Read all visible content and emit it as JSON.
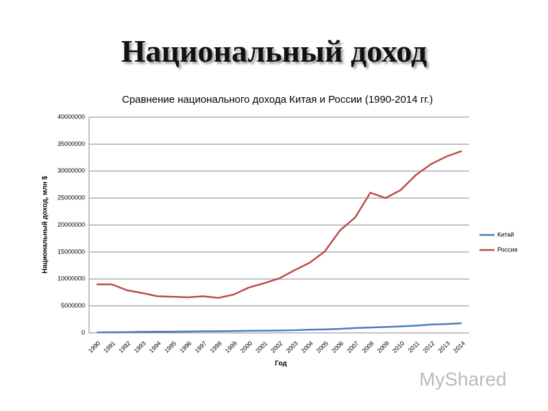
{
  "slide_title": "Национальный доход",
  "watermark": "MyShared",
  "chart_data": {
    "type": "line",
    "title": "Сравнение национального дохода Китая и России (1990-2014 гг.)",
    "x_label": "Год",
    "y_label": "Национальный доход, млн $",
    "categories": [
      "1990",
      "1991",
      "1992",
      "1993",
      "1994",
      "1995",
      "1996",
      "1997",
      "1998",
      "1999",
      "2000",
      "2001",
      "2002",
      "2003",
      "2004",
      "2005",
      "2006",
      "2007",
      "2008",
      "2009",
      "2010",
      "2011",
      "2012",
      "2013",
      "2014"
    ],
    "series": [
      {
        "name": "Китай",
        "color": "#4a7ebb",
        "values": [
          100000,
          120000,
          150000,
          200000,
          220000,
          230000,
          250000,
          300000,
          320000,
          350000,
          400000,
          420000,
          450000,
          500000,
          600000,
          650000,
          750000,
          900000,
          1000000,
          1100000,
          1200000,
          1350000,
          1550000,
          1650000,
          1800000
        ]
      },
      {
        "name": "Россия",
        "color": "#be4b48",
        "values": [
          9000000,
          9000000,
          7900000,
          7400000,
          6800000,
          6700000,
          6600000,
          6800000,
          6500000,
          7100000,
          8400000,
          9200000,
          10100000,
          11600000,
          13000000,
          15100000,
          19000000,
          21400000,
          26000000,
          25000000,
          26500000,
          29300000,
          31300000,
          32700000,
          33700000
        ]
      }
    ],
    "ylim": [
      0,
      40000000
    ],
    "yticks": [
      0,
      5000000,
      10000000,
      15000000,
      20000000,
      25000000,
      30000000,
      35000000,
      40000000
    ],
    "grid": true,
    "legend": "right"
  }
}
